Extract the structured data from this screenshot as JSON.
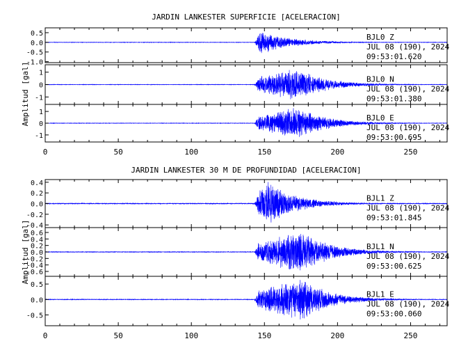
{
  "x_ticks": [
    "0",
    "50",
    "100",
    "150",
    "200",
    "250"
  ],
  "colors": {
    "trace": "#0000ff",
    "axes": "#000000",
    "background": "#ffffff"
  },
  "chart_data": [
    {
      "type": "line",
      "title": "JARDIN LANKESTER SUPERFICIE [ACELERACION]",
      "ylabel": "Amplitud [gal]",
      "xlim": [
        0,
        275
      ],
      "panels": [
        {
          "station": "BJL0",
          "component": "Z",
          "date_line": "JUL 08 (190), 2024",
          "time_line": "09:53:01.620",
          "ylim": [
            -1.05,
            0.75
          ],
          "y_ticks": [
            "0.5",
            "0.0",
            "-0.5",
            "-1.0"
          ],
          "y_tick_values": [
            0.5,
            0.0,
            -0.5,
            -1.0
          ],
          "onset": 143,
          "peak_time": 148,
          "peak_amplitude": 0.65,
          "noise": 0.012,
          "seed": 11
        },
        {
          "station": "BJL0",
          "component": "N",
          "date_line": "JUL 08 (190), 2024",
          "time_line": "09:53:01.380",
          "ylim": [
            -1.6,
            1.6
          ],
          "y_ticks": [
            "1",
            "0",
            "-1"
          ],
          "y_tick_values": [
            1,
            0,
            -1
          ],
          "onset": 143,
          "peak_time": 172,
          "peak_amplitude": 1.4,
          "noise": 0.02,
          "seed": 23
        },
        {
          "station": "BJL0",
          "component": "E",
          "date_line": "JUL 08 (190), 2024",
          "time_line": "09:53:00.695",
          "ylim": [
            -1.6,
            1.6
          ],
          "y_ticks": [
            "1",
            "0",
            "-1"
          ],
          "y_tick_values": [
            1,
            0,
            -1
          ],
          "onset": 143,
          "peak_time": 172,
          "peak_amplitude": 1.45,
          "noise": 0.02,
          "seed": 37
        }
      ]
    },
    {
      "type": "line",
      "title": "JARDIN LANKESTER 30 M DE PROFUNDIDAD [ACELERACION]",
      "ylabel": "Amplitud [gal]",
      "xlim": [
        0,
        275
      ],
      "panels": [
        {
          "station": "BJL1",
          "component": "Z",
          "date_line": "JUL 08 (190), 2024",
          "time_line": "09:53:01.845",
          "ylim": [
            -0.45,
            0.45
          ],
          "y_ticks": [
            "0.4",
            "0.2",
            "0.0",
            "-0.2",
            "-0.4"
          ],
          "y_tick_values": [
            0.4,
            0.2,
            0.0,
            -0.2,
            -0.4
          ],
          "onset": 143,
          "peak_time": 152,
          "peak_amplitude": 0.42,
          "noise": 0.008,
          "seed": 41
        },
        {
          "station": "BJL1",
          "component": "N",
          "date_line": "JUL 08 (190), 2024",
          "time_line": "09:53:00.625",
          "ylim": [
            -0.75,
            0.75
          ],
          "y_ticks": [
            "0.6",
            "0.4",
            "0.2",
            "0.0",
            "-0.2",
            "-0.4",
            "-0.6"
          ],
          "y_tick_values": [
            0.6,
            0.4,
            0.2,
            0.0,
            -0.2,
            -0.4,
            -0.6
          ],
          "onset": 143,
          "peak_time": 175,
          "peak_amplitude": 0.7,
          "noise": 0.01,
          "seed": 53
        },
        {
          "station": "BJL1",
          "component": "E",
          "date_line": "JUL 08 (190), 2024",
          "time_line": "09:53:00.060",
          "ylim": [
            -0.85,
            0.75
          ],
          "y_ticks": [
            "0.5",
            "0.0",
            "-0.5"
          ],
          "y_tick_values": [
            0.5,
            0.0,
            -0.5
          ],
          "onset": 143,
          "peak_time": 175,
          "peak_amplitude": 0.72,
          "noise": 0.01,
          "seed": 67
        }
      ]
    }
  ]
}
